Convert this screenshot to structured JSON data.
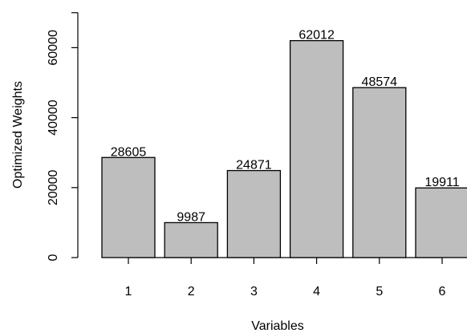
{
  "chart_data": {
    "type": "bar",
    "title": "",
    "xlabel": "Variables",
    "ylabel": "Optimized Weights",
    "categories": [
      "1",
      "2",
      "3",
      "4",
      "5",
      "6"
    ],
    "values": [
      28605,
      9987,
      24871,
      62012,
      48574,
      19911
    ],
    "value_labels": [
      "28605",
      "9987",
      "24871",
      "62012",
      "48574",
      "19911"
    ],
    "ylim": [
      0,
      70000
    ],
    "yticks": [
      0,
      20000,
      40000,
      60000
    ],
    "ytick_labels": [
      "0",
      "20000",
      "40000",
      "60000"
    ],
    "grid": false,
    "legend": "none",
    "bar_color": "#bebebe"
  }
}
